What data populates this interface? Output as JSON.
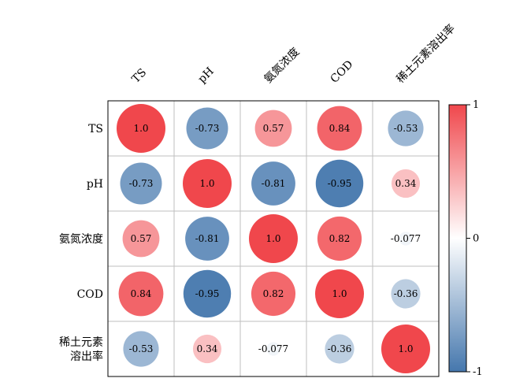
{
  "chart_data": {
    "type": "heatmap",
    "variables": [
      "TS",
      "pH",
      "氨氮浓度",
      "COD",
      "稀土元素溶出率"
    ],
    "row_labels": [
      [
        "TS"
      ],
      [
        "pH"
      ],
      [
        "氨氮浓度"
      ],
      [
        "COD"
      ],
      [
        "稀土元素",
        "溶出率"
      ]
    ],
    "matrix": [
      [
        1.0,
        -0.73,
        0.57,
        0.84,
        -0.53
      ],
      [
        -0.73,
        1.0,
        -0.81,
        -0.95,
        0.34
      ],
      [
        0.57,
        -0.81,
        1.0,
        0.82,
        -0.077
      ],
      [
        0.84,
        -0.95,
        0.82,
        1.0,
        -0.36
      ],
      [
        -0.53,
        0.34,
        -0.077,
        -0.36,
        1.0
      ]
    ],
    "value_labels": [
      [
        "1.0",
        "-0.73",
        "0.57",
        "0.84",
        "-0.53"
      ],
      [
        "-0.73",
        "1.0",
        "-0.81",
        "-0.95",
        "0.34"
      ],
      [
        "0.57",
        "-0.81",
        "1.0",
        "0.82",
        "-0.077"
      ],
      [
        "0.84",
        "-0.95",
        "0.82",
        "1.0",
        "-0.36"
      ],
      [
        "-0.53",
        "0.34",
        "-0.077",
        "-0.36",
        "1.0"
      ]
    ],
    "color_range": [
      -1,
      1
    ],
    "colorbar_ticks": [
      "1",
      "0",
      "-1"
    ],
    "colors": {
      "positive": "#f0474c",
      "neutral": "#ffffff",
      "negative": "#4577ad",
      "grid": "#bfbfbf",
      "border": "#000000"
    }
  }
}
